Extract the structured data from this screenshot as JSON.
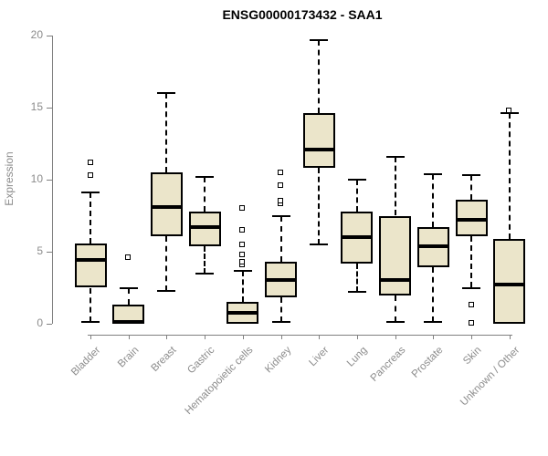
{
  "title": "ENSG00000173432 - SAA1",
  "colors": {
    "box_fill": "#ebe5ca",
    "box_stroke": "#000000",
    "median": "#000000",
    "axis": "#808080",
    "axis_text": "#8c8c8c",
    "title_text": "#000000",
    "background": "#ffffff"
  },
  "chart_data": {
    "type": "boxplot",
    "title": "ENSG00000173432 - SAA1",
    "xlabel": "",
    "ylabel": "Expression",
    "ylim": [
      0,
      20
    ],
    "yticks": [
      0,
      5,
      10,
      15,
      20
    ],
    "grid": false,
    "legend": false,
    "categories": [
      "Bladder",
      "Brain",
      "Breast",
      "Gastric",
      "Hematopoietic cells",
      "Kidney",
      "Liver",
      "Lung",
      "Pancreas",
      "Prostate",
      "Skin",
      "Unknown / Other"
    ],
    "series": [
      {
        "name": "Bladder",
        "whisker_low": 0.1,
        "q1": 2.5,
        "median": 4.4,
        "q3": 5.6,
        "whisker_high": 9.1,
        "outliers": [
          10.3,
          11.2
        ]
      },
      {
        "name": "Brain",
        "whisker_low": 0.0,
        "q1": 0.0,
        "median": 0.15,
        "q3": 1.3,
        "whisker_high": 2.5,
        "outliers": [
          4.6
        ]
      },
      {
        "name": "Breast",
        "whisker_low": 2.3,
        "q1": 6.1,
        "median": 8.1,
        "q3": 10.5,
        "whisker_high": 16.0,
        "outliers": []
      },
      {
        "name": "Gastric",
        "whisker_low": 3.5,
        "q1": 5.4,
        "median": 6.7,
        "q3": 7.8,
        "whisker_high": 10.2,
        "outliers": []
      },
      {
        "name": "Hematopoietic cells",
        "whisker_low": 0.0,
        "q1": 0.0,
        "median": 0.75,
        "q3": 1.5,
        "whisker_high": 3.7,
        "outliers": [
          4.1,
          4.3,
          4.8,
          5.5,
          6.5,
          8.0
        ]
      },
      {
        "name": "Kidney",
        "whisker_low": 0.15,
        "q1": 1.85,
        "median": 3.05,
        "q3": 4.3,
        "whisker_high": 7.5,
        "outliers": [
          8.3,
          8.5,
          9.6,
          10.5
        ]
      },
      {
        "name": "Liver",
        "whisker_low": 5.5,
        "q1": 10.8,
        "median": 12.1,
        "q3": 14.6,
        "whisker_high": 19.7,
        "outliers": []
      },
      {
        "name": "Lung",
        "whisker_low": 2.2,
        "q1": 4.2,
        "median": 6.0,
        "q3": 7.8,
        "whisker_high": 10.0,
        "outliers": []
      },
      {
        "name": "Pancreas",
        "whisker_low": 0.15,
        "q1": 1.95,
        "median": 3.05,
        "q3": 7.5,
        "whisker_high": 11.6,
        "outliers": []
      },
      {
        "name": "Prostate",
        "whisker_low": 0.15,
        "q1": 3.9,
        "median": 5.4,
        "q3": 6.7,
        "whisker_high": 10.4,
        "outliers": []
      },
      {
        "name": "Skin",
        "whisker_low": 2.5,
        "q1": 6.1,
        "median": 7.2,
        "q3": 8.6,
        "whisker_high": 10.3,
        "outliers": [
          0.05,
          1.3
        ]
      },
      {
        "name": "Unknown / Other",
        "whisker_low": 0.0,
        "q1": 0.0,
        "median": 2.7,
        "q3": 5.9,
        "whisker_high": 14.6,
        "outliers": [
          14.8
        ]
      }
    ]
  }
}
